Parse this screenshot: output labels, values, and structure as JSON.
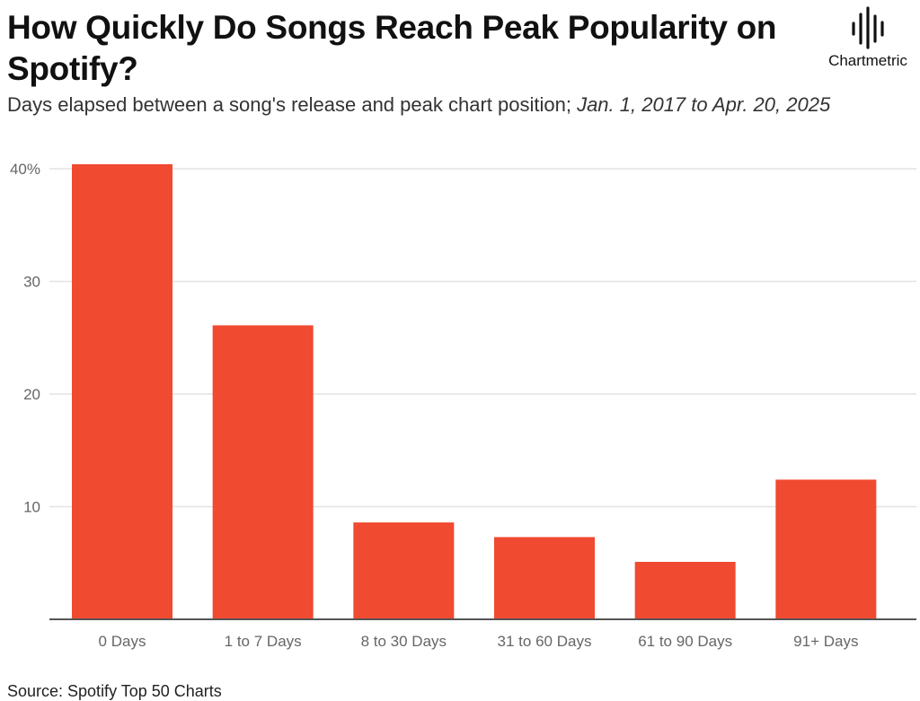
{
  "header": {
    "title": "How Quickly Do Songs Reach Peak Popularity on Spotify?",
    "subtitle_main": "Days elapsed between a song's release and peak chart position;",
    "subtitle_dates": "Jan. 1, 2017 to Apr. 20, 2025"
  },
  "logo": {
    "text": "Chartmetric",
    "icon": "waveform-icon"
  },
  "footer": {
    "source": "Source: Spotify Top 50 Charts"
  },
  "colors": {
    "bar": "#f04a31",
    "grid": "#e3e3e3",
    "axis": "#555555",
    "tick": "#666666"
  },
  "chart_data": {
    "type": "bar",
    "categories": [
      "0 Days",
      "1 to 7 Days",
      "8 to 30 Days",
      "31 to 60 Days",
      "61 to 90 Days",
      "91+ Days"
    ],
    "values": [
      40.4,
      26.1,
      8.6,
      7.3,
      5.1,
      12.4
    ],
    "ylim": [
      0,
      40
    ],
    "yticks": [
      10,
      20,
      30,
      40
    ],
    "ytick_labels": [
      "10",
      "20",
      "30",
      "40%"
    ],
    "grid": true
  }
}
